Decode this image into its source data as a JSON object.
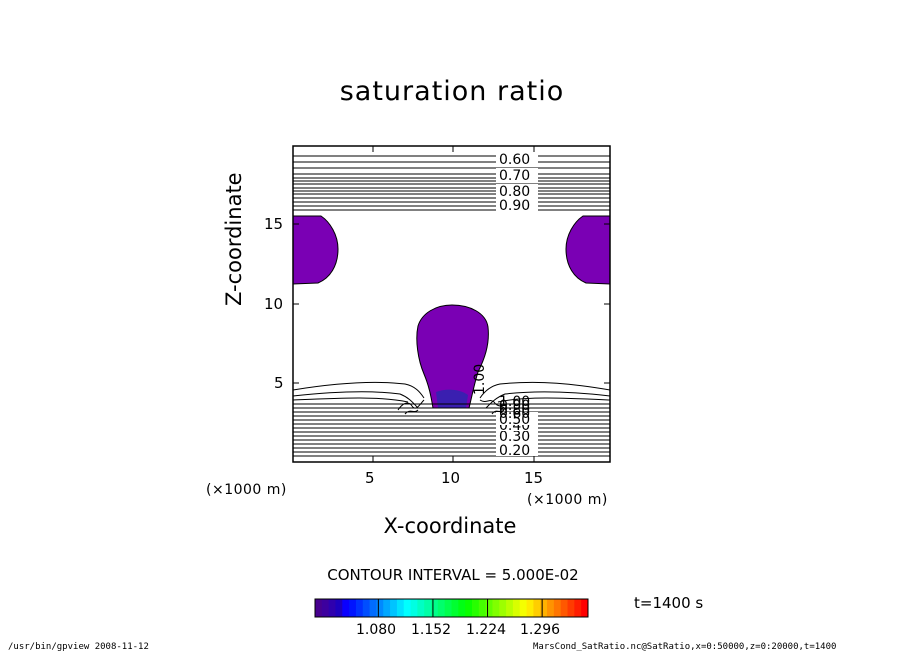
{
  "chart_data": {
    "type": "contour",
    "title": "saturation ratio",
    "xlabel": "X-coordinate",
    "ylabel": "Z-coordinate",
    "x_unit": "(×1000 m)",
    "y_unit": "(×1000 m)",
    "xlim": [
      0,
      19.5
    ],
    "ylim": [
      0,
      19.5
    ],
    "x_ticks": [
      5,
      10,
      15
    ],
    "y_ticks": [
      5,
      10,
      15
    ],
    "contour_interval": "CONTOUR INTERVAL = 5.000E-02",
    "contour_labels_upper": [
      "0.60",
      "0.70",
      "0.80",
      "0.90"
    ],
    "contour_labels_lower": [
      "0.20",
      "0.30",
      "0.40",
      "0.50",
      "0.60",
      "0.80",
      "0.90",
      "1.00"
    ],
    "colorbar_ticks": [
      "1.080",
      "1.152",
      "1.224",
      "1.296"
    ],
    "time_label": "t=1400 s",
    "shaded_regions": [
      {
        "name": "left-upper",
        "fill": "#7a00b4"
      },
      {
        "name": "right-upper",
        "fill": "#7a00b4"
      },
      {
        "name": "center-plume",
        "fill": "#7a00b4"
      }
    ]
  },
  "footer": {
    "left": "/usr/bin/gpview  2008-11-12",
    "right": "MarsCond_SatRatio.nc@SatRatio,x=0:50000,z=0:20000,t=1400"
  }
}
